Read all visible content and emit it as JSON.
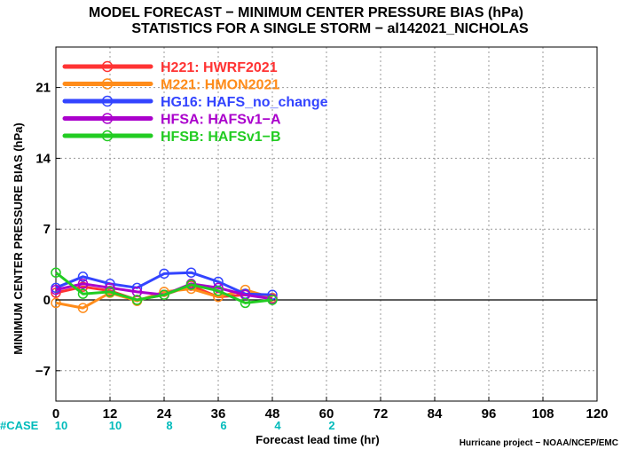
{
  "chart_data": {
    "type": "line",
    "title": "MODEL FORECAST − MINIMUM CENTER PRESSURE BIAS (hPa)",
    "subtitle": "STATISTICS FOR A SINGLE STORM − al142021_NICHOLAS",
    "xlabel": "Forecast lead time (hr)",
    "ylabel": "MINIMUM CENTER PRESSURE BIAS (hPa)",
    "xlim": [
      0,
      120
    ],
    "ylim": [
      -10,
      25
    ],
    "xticks": [
      "0",
      "12",
      "24",
      "36",
      "48",
      "60",
      "72",
      "84",
      "96",
      "108",
      "120"
    ],
    "yticks": [
      "-7",
      "0",
      "7",
      "14",
      "21"
    ],
    "grid": true,
    "legend_position": "top-left",
    "x": [
      0,
      6,
      12,
      18,
      24,
      30,
      36,
      42,
      48
    ],
    "series": [
      {
        "name": "H221:  HWRF2021",
        "color": "#ff3333",
        "values": [
          0.7,
          1.3,
          0.9,
          0.0,
          0.5,
          1.4,
          0.3,
          0.5,
          0.2
        ]
      },
      {
        "name": "M221:  HMON2021",
        "color": "#ff8c1a",
        "values": [
          -0.3,
          -0.8,
          0.7,
          -0.1,
          0.8,
          1.1,
          0.3,
          1.0,
          0.2
        ]
      },
      {
        "name": "HG16:  HAFS_no_change",
        "color": "#3344ff",
        "values": [
          1.2,
          2.3,
          1.6,
          1.2,
          2.6,
          2.7,
          1.8,
          0.6,
          0.5
        ]
      },
      {
        "name": "HFSA:  HAFSv1−A",
        "color": "#aa00cc",
        "values": [
          1.0,
          1.6,
          1.2,
          0.8,
          0.5,
          1.6,
          1.2,
          0.5,
          0.1
        ]
      },
      {
        "name": "HFSB:  HAFSv1−B",
        "color": "#22cc22",
        "values": [
          2.7,
          0.6,
          0.8,
          0.0,
          0.5,
          1.5,
          0.9,
          -0.3,
          0.0
        ]
      }
    ],
    "cases": {
      "label": "#CASE",
      "x": [
        0,
        12,
        24,
        36,
        48,
        60
      ],
      "values": [
        "10",
        "10",
        "8",
        "6",
        "4",
        "2"
      ]
    }
  },
  "footer": "Hurricane project − NOAA/NCEP/EMC",
  "colors": {
    "zero_line": "#000000",
    "grid": "#999999",
    "case_text": "#00bbbb"
  }
}
